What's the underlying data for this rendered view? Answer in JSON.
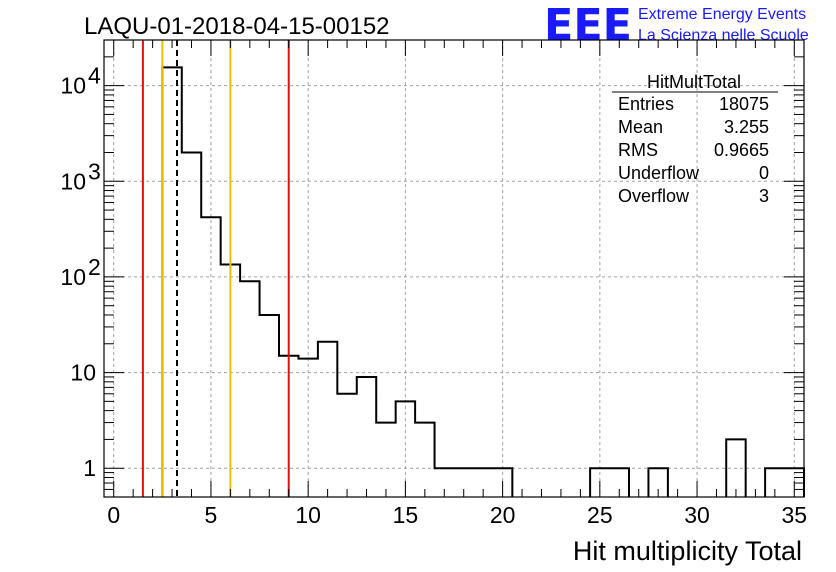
{
  "header": {
    "run_id": "LAQU-01-2018-04-15-00152",
    "logo_text": "EEE",
    "logo_line1": "Extreme Energy Events",
    "logo_line2": "La Scienza nelle Scuole",
    "logo_color": "#1a1aff"
  },
  "stats": {
    "title": "HitMultTotal",
    "rows": [
      {
        "label": "Entries",
        "value": "18075"
      },
      {
        "label": "Mean",
        "value": "3.255"
      },
      {
        "label": "RMS",
        "value": "0.9665"
      },
      {
        "label": "Underflow",
        "value": "0"
      },
      {
        "label": "Overflow",
        "value": "3"
      }
    ]
  },
  "chart_data": {
    "type": "histogram",
    "title": "LAQU-01-2018-04-15-00152",
    "xlabel": "Hit multiplicity Total",
    "ylabel": "",
    "xlim": [
      -0.5,
      35.5
    ],
    "ylim": [
      0.5,
      30000
    ],
    "yscale": "log",
    "grid": true,
    "x_ticks": [
      "0",
      "5",
      "10",
      "15",
      "20",
      "25",
      "30",
      "35"
    ],
    "y_ticks": [
      {
        "value": 1,
        "label": "1"
      },
      {
        "value": 10,
        "label": "10"
      },
      {
        "value": 100,
        "label": "10",
        "exp": "2"
      },
      {
        "value": 1000,
        "label": "10",
        "exp": "3"
      },
      {
        "value": 10000,
        "label": "10",
        "exp": "4"
      }
    ],
    "bins": [
      {
        "x0": 2.5,
        "x1": 3.5,
        "y": 15500
      },
      {
        "x0": 3.5,
        "x1": 4.5,
        "y": 2000
      },
      {
        "x0": 4.5,
        "x1": 5.5,
        "y": 420
      },
      {
        "x0": 5.5,
        "x1": 6.5,
        "y": 135
      },
      {
        "x0": 6.5,
        "x1": 7.5,
        "y": 90
      },
      {
        "x0": 7.5,
        "x1": 8.5,
        "y": 40
      },
      {
        "x0": 8.5,
        "x1": 9.5,
        "y": 15
      },
      {
        "x0": 9.5,
        "x1": 10.5,
        "y": 14
      },
      {
        "x0": 10.5,
        "x1": 11.5,
        "y": 21
      },
      {
        "x0": 11.5,
        "x1": 12.5,
        "y": 6
      },
      {
        "x0": 12.5,
        "x1": 13.5,
        "y": 9
      },
      {
        "x0": 13.5,
        "x1": 14.5,
        "y": 3
      },
      {
        "x0": 14.5,
        "x1": 15.5,
        "y": 5
      },
      {
        "x0": 15.5,
        "x1": 16.5,
        "y": 3
      },
      {
        "x0": 16.5,
        "x1": 20.5,
        "y": 1
      },
      {
        "x0": 24.5,
        "x1": 26.5,
        "y": 1
      },
      {
        "x0": 27.5,
        "x1": 28.5,
        "y": 1
      },
      {
        "x0": 31.5,
        "x1": 32.5,
        "y": 2
      },
      {
        "x0": 33.5,
        "x1": 35.5,
        "y": 1
      }
    ],
    "markers": [
      {
        "x": 1.5,
        "color": "#dd1111",
        "style": "solid"
      },
      {
        "x": 2.5,
        "color": "#f0c000",
        "style": "solid"
      },
      {
        "x": 3.255,
        "color": "#000000",
        "style": "dashed"
      },
      {
        "x": 6.0,
        "color": "#f0c000",
        "style": "solid"
      },
      {
        "x": 9.0,
        "color": "#dd1111",
        "style": "solid"
      }
    ]
  }
}
